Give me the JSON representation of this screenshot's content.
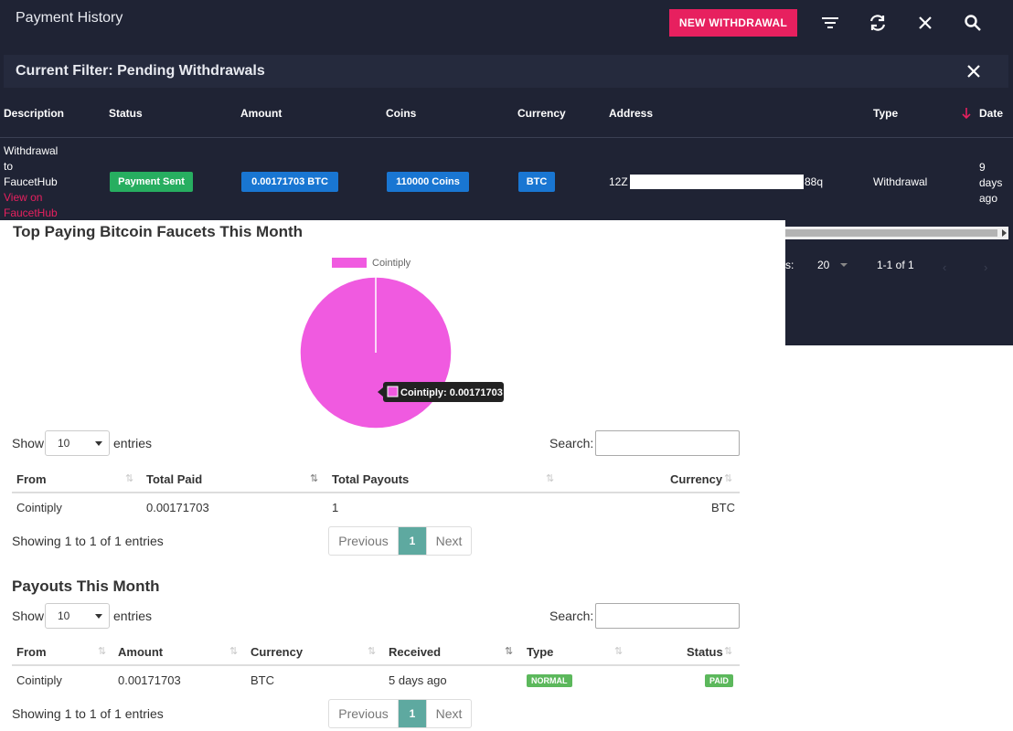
{
  "app": {
    "title": "Payment History",
    "new_withdrawal_label": "NEW WITHDRAWAL",
    "filter_text": "Current Filter: Pending Withdrawals"
  },
  "withdrawals": {
    "headers": [
      "Description",
      "Status",
      "Amount",
      "Coins",
      "Currency",
      "Address",
      "Type",
      "Date"
    ],
    "row": {
      "description": "Withdrawal to FaucetHub",
      "link": "View on FaucetHub",
      "status": "Payment Sent",
      "amount": "0.00171703 BTC",
      "coins": "110000 Coins",
      "currency": "BTC",
      "address_start": "12Z",
      "address_end": "88q",
      "type": "Withdrawal",
      "date": "9 days ago"
    },
    "pagination": {
      "rows_label_tail": "s:",
      "rows_value": "20",
      "range": "1-1 of 1"
    }
  },
  "faucets": {
    "title": "Top Paying Bitcoin Faucets This Month",
    "show_label": "Show",
    "entries_label": "entries",
    "length_value": "10",
    "search_label": "Search:",
    "columns": [
      "From",
      "Total Paid",
      "Total Payouts",
      "Currency"
    ],
    "rows": [
      {
        "from": "Cointiply",
        "total_paid": "0.00171703",
        "total_payouts": "1",
        "currency": "BTC"
      }
    ],
    "info": "Showing 1 to 1 of 1 entries",
    "pager": {
      "prev": "Previous",
      "page": "1",
      "next": "Next"
    }
  },
  "chart_data": {
    "type": "pie",
    "series": [
      {
        "name": "Cointiply",
        "values": [
          0.00171703
        ]
      }
    ],
    "categories": [
      "Cointiply"
    ],
    "legend": "top",
    "tooltip": "Cointiply: 0.00171703",
    "color": "#f05ae0"
  },
  "payouts": {
    "title": "Payouts This Month",
    "show_label": "Show",
    "entries_label": "entries",
    "length_value": "10",
    "search_label": "Search:",
    "columns": [
      "From",
      "Amount",
      "Currency",
      "Received",
      "Type",
      "Status"
    ],
    "rows": [
      {
        "from": "Cointiply",
        "amount": "0.00171703",
        "currency": "BTC",
        "received": "5 days ago",
        "type": "NORMAL",
        "status": "PAID"
      }
    ],
    "info": "Showing 1 to 1 of 1 entries",
    "pager": {
      "prev": "Previous",
      "page": "1",
      "next": "Next"
    }
  },
  "colors": {
    "accent": "#e7205f",
    "status_green": "#27ae60",
    "chip_blue": "#1976d2",
    "pager_teal": "#5ea9a0",
    "badge_green": "#5cb85c"
  }
}
